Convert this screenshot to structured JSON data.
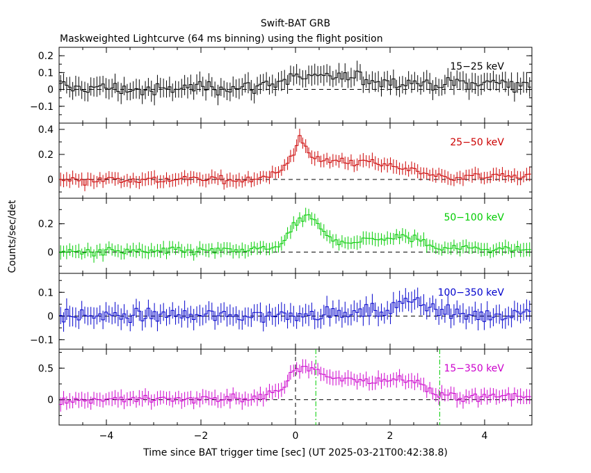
{
  "title": "Swift-BAT GRB",
  "subtitle": "Maskweighted Lightcurve (64 ms binning) using the flight position",
  "xlabel": "Time since BAT trigger time [sec] (UT 2025-03-21T00:42:38.8)",
  "ylabel": "Counts/sec/det",
  "chart_data": {
    "type": "line",
    "xlim": [
      -5,
      5
    ],
    "x_ticks": [
      -4,
      -2,
      0,
      2,
      4
    ],
    "bin_width_sec": 0.064,
    "vertical_markers": [
      {
        "x": 0.0,
        "style": "dashed",
        "color": "#000000",
        "panel": "15-350 keV"
      },
      {
        "x": 0.43,
        "style": "dash-dot",
        "color": "#00cc00",
        "panel": "15-350 keV"
      },
      {
        "x": 3.05,
        "style": "dash-dot",
        "color": "#00cc00",
        "panel": "15-350 keV"
      }
    ],
    "panels": [
      {
        "name": "15-25 keV",
        "label": "15−25 keV",
        "color": "#000000",
        "ylim": [
          -0.2,
          0.25
        ],
        "yticks": [
          -0.1,
          0,
          0.1,
          0.2
        ],
        "yticklabels": [
          "−0.1",
          "0",
          "0.1",
          "0.2"
        ],
        "anchors_t": [
          -5,
          -4,
          -3,
          -2,
          -1,
          0,
          1,
          2,
          3,
          4,
          5
        ],
        "anchors_v": [
          0.01,
          0.01,
          -0.01,
          0.02,
          0.01,
          0.07,
          0.07,
          0.05,
          0.03,
          0.04,
          0.03
        ],
        "noise": 0.05,
        "err": 0.055
      },
      {
        "name": "25-50 keV",
        "label": "25−50 keV",
        "color": "#cc0000",
        "ylim": [
          -0.15,
          0.45
        ],
        "yticks": [
          0,
          0.2,
          0.4
        ],
        "yticklabels": [
          "0",
          "0.2",
          "0.4"
        ],
        "anchors_t": [
          -5,
          -1,
          -0.3,
          0,
          0.1,
          0.4,
          0.7,
          1.5,
          2.5,
          3,
          5
        ],
        "anchors_v": [
          0.0,
          0.0,
          0.05,
          0.25,
          0.35,
          0.15,
          0.15,
          0.14,
          0.08,
          0.02,
          0.03
        ],
        "noise": 0.04,
        "err": 0.05
      },
      {
        "name": "50-100 keV",
        "label": "50−100 keV",
        "color": "#00cc00",
        "ylim": [
          -0.15,
          0.38
        ],
        "yticks": [
          0,
          0.2
        ],
        "yticklabels": [
          "0",
          "0.2"
        ],
        "anchors_t": [
          -5,
          -1,
          -0.3,
          0,
          0.3,
          0.7,
          1,
          2,
          2.5,
          3,
          5
        ],
        "anchors_v": [
          0.0,
          0.01,
          0.04,
          0.2,
          0.25,
          0.1,
          0.07,
          0.1,
          0.1,
          0.03,
          0.02
        ],
        "noise": 0.035,
        "err": 0.045
      },
      {
        "name": "100-350 keV",
        "label": "100−350 keV",
        "color": "#0000cc",
        "ylim": [
          -0.14,
          0.18
        ],
        "yticks": [
          -0.1,
          0,
          0.1
        ],
        "yticklabels": [
          "−0.1",
          "0",
          "0.1"
        ],
        "anchors_t": [
          -5,
          -1,
          0,
          1,
          2,
          2.3,
          2.5,
          2.8,
          3.2,
          4,
          5
        ],
        "anchors_v": [
          0.0,
          0.0,
          0.01,
          0.01,
          0.02,
          0.06,
          0.09,
          0.04,
          0.01,
          0.0,
          0.02
        ],
        "noise": 0.035,
        "err": 0.04
      },
      {
        "name": "15-350 keV",
        "label": "15−350 keV",
        "color": "#cc00cc",
        "ylim": [
          -0.4,
          0.8
        ],
        "yticks": [
          0,
          0.5
        ],
        "yticklabels": [
          "0",
          "0.5"
        ],
        "anchors_t": [
          -5,
          -1,
          -0.3,
          0,
          0.4,
          0.7,
          1.5,
          2.5,
          3,
          3.5,
          5
        ],
        "anchors_v": [
          0.0,
          0.02,
          0.12,
          0.5,
          0.5,
          0.35,
          0.3,
          0.32,
          0.05,
          0.05,
          0.05
        ],
        "noise": 0.09,
        "err": 0.11
      }
    ]
  }
}
